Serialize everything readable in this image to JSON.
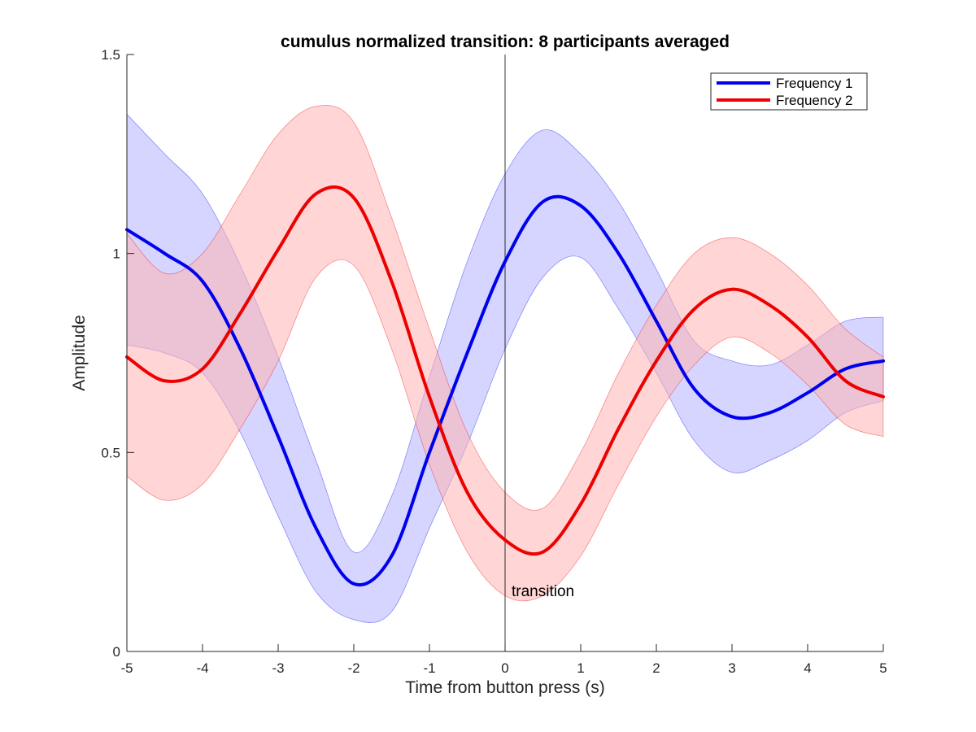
{
  "chart_data": {
    "type": "line",
    "title": "cumulus normalized transition: 8 participants averaged",
    "xlabel": "Time from button press (s)",
    "ylabel": "Amplitude",
    "xlim": [
      -5,
      5
    ],
    "ylim": [
      0,
      1.5
    ],
    "xticks": [
      -5,
      -4,
      -3,
      -2,
      -1,
      0,
      1,
      2,
      3,
      4,
      5
    ],
    "yticks": [
      0,
      0.5,
      1,
      1.5
    ],
    "xtick_labels": [
      "-5",
      "-4",
      "-3",
      "-2",
      "-1",
      "0",
      "1",
      "2",
      "3",
      "4",
      "5"
    ],
    "ytick_labels": [
      "0",
      "0.5",
      "1",
      "1.5"
    ],
    "grid": false,
    "legend_position": "top-right",
    "annotation": {
      "text": "transition",
      "x": 0
    },
    "x": [
      -5,
      -4.5,
      -4,
      -3.5,
      -3,
      -2.5,
      -2,
      -1.5,
      -1,
      -0.5,
      0,
      0.5,
      1,
      1.5,
      2,
      2.5,
      3,
      3.5,
      4,
      4.5,
      5
    ],
    "series": [
      {
        "name": "Frequency 1",
        "color": "#0000ee",
        "band_color": "#b3b3ff",
        "values": [
          1.06,
          1.0,
          0.93,
          0.76,
          0.54,
          0.31,
          0.17,
          0.24,
          0.5,
          0.75,
          0.98,
          1.13,
          1.12,
          1.0,
          0.83,
          0.66,
          0.59,
          0.6,
          0.65,
          0.71,
          0.73
        ],
        "upper": [
          1.35,
          1.25,
          1.15,
          0.97,
          0.74,
          0.48,
          0.25,
          0.39,
          0.69,
          0.98,
          1.2,
          1.31,
          1.25,
          1.13,
          0.96,
          0.78,
          0.73,
          0.72,
          0.77,
          0.83,
          0.84
        ],
        "lower": [
          0.77,
          0.75,
          0.7,
          0.55,
          0.34,
          0.15,
          0.08,
          0.1,
          0.31,
          0.52,
          0.76,
          0.94,
          0.99,
          0.86,
          0.7,
          0.53,
          0.45,
          0.48,
          0.53,
          0.6,
          0.63
        ]
      },
      {
        "name": "Frequency 2",
        "color": "#ee0000",
        "band_color": "#ffb3b3",
        "values": [
          0.74,
          0.68,
          0.71,
          0.85,
          1.01,
          1.15,
          1.14,
          0.93,
          0.64,
          0.4,
          0.28,
          0.25,
          0.37,
          0.56,
          0.73,
          0.86,
          0.91,
          0.87,
          0.79,
          0.68,
          0.64
        ],
        "upper": [
          1.05,
          0.95,
          1.0,
          1.15,
          1.3,
          1.37,
          1.33,
          1.09,
          0.81,
          0.55,
          0.4,
          0.36,
          0.5,
          0.7,
          0.87,
          1.0,
          1.04,
          1.0,
          0.92,
          0.81,
          0.74
        ],
        "lower": [
          0.44,
          0.38,
          0.42,
          0.56,
          0.73,
          0.94,
          0.97,
          0.76,
          0.47,
          0.25,
          0.14,
          0.14,
          0.24,
          0.42,
          0.59,
          0.72,
          0.79,
          0.75,
          0.67,
          0.57,
          0.54
        ]
      }
    ]
  }
}
